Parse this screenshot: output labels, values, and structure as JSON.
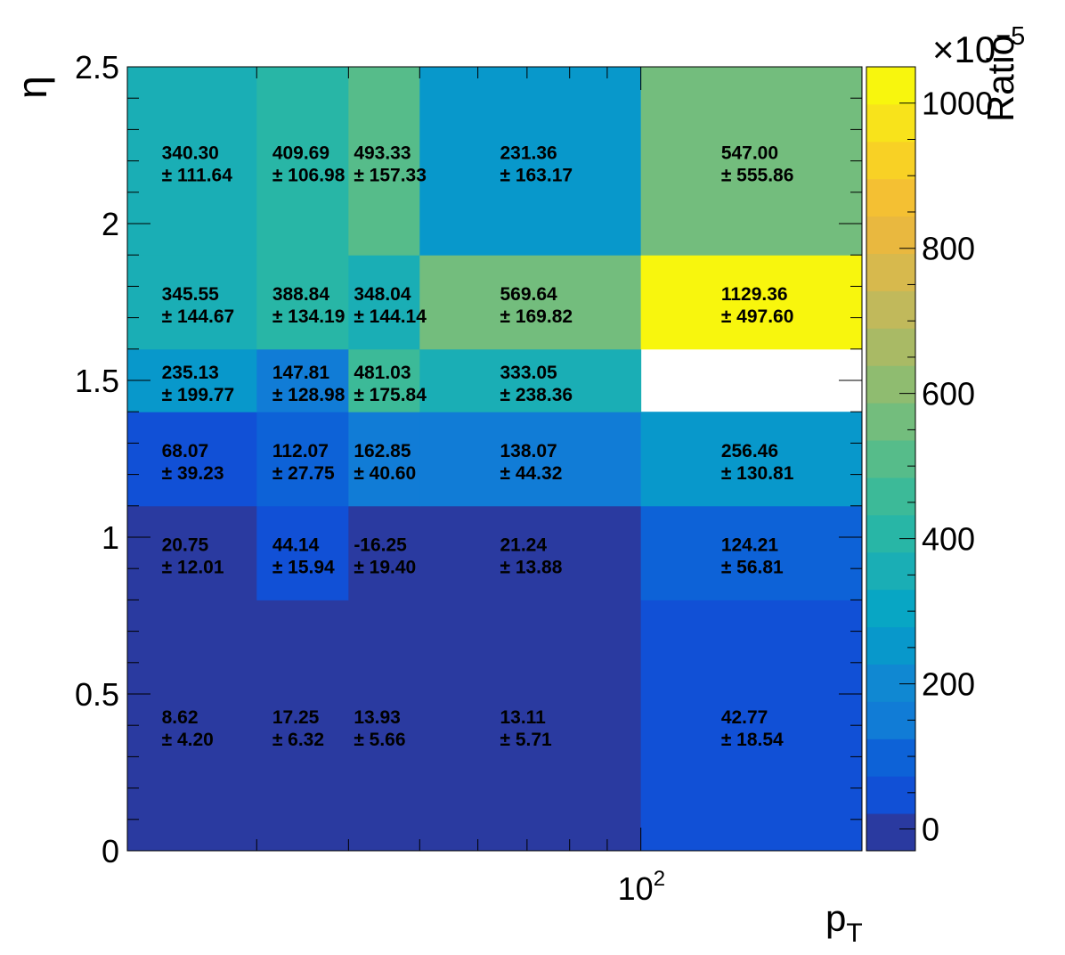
{
  "chart_data": {
    "type": "heatmap",
    "xlabel": "p",
    "xlabel_sub": "T",
    "ylabel": "η",
    "zlabel": "Ratio",
    "z_exponent_label": "×10",
    "z_exponent": "−5",
    "x_scale": "log",
    "x_edges": [
      20,
      30,
      40,
      50,
      100,
      200
    ],
    "x_tick_label_base": "10",
    "x_tick_label_exp": "2",
    "y_edges": [
      0,
      0.8,
      1.1,
      1.4,
      1.6,
      1.9,
      2.5
    ],
    "y_ticks": [
      {
        "value": 0,
        "label": "0"
      },
      {
        "value": 0.5,
        "label": "0.5"
      },
      {
        "value": 1,
        "label": "1"
      },
      {
        "value": 1.5,
        "label": "1.5"
      },
      {
        "value": 2,
        "label": "2"
      },
      {
        "value": 2.5,
        "label": "2.5"
      }
    ],
    "z_range": [
      -30,
      1050
    ],
    "z_ticks": [
      {
        "value": 0,
        "label": "0"
      },
      {
        "value": 200,
        "label": "200"
      },
      {
        "value": 400,
        "label": "400"
      },
      {
        "value": 600,
        "label": "600"
      },
      {
        "value": 800,
        "label": "800"
      },
      {
        "value": 1000,
        "label": "1000"
      }
    ],
    "colors": [
      "#2a3aa0",
      "#1150d6",
      "#0d62d7",
      "#117cd6",
      "#1088d2",
      "#0898cb",
      "#08a6c4",
      "#1aaeb5",
      "#28b6a6",
      "#3cba98",
      "#56bc8a",
      "#73bd7d",
      "#8fbc70",
      "#a9ba65",
      "#c1b95b",
      "#d7b94d",
      "#e9b83f",
      "#f4c033",
      "#f8d125",
      "#f8e31b",
      "#f8f60d"
    ],
    "rows": [
      {
        "cells": [
          {
            "value": "8.62",
            "error": "4.20",
            "z": 8.62
          },
          {
            "value": "17.25",
            "error": "6.32",
            "z": 17.25
          },
          {
            "value": "13.93",
            "error": "5.66",
            "z": 13.93
          },
          {
            "value": "13.11",
            "error": "5.71",
            "z": 13.11
          },
          {
            "value": "42.77",
            "error": "18.54",
            "z": 42.77
          }
        ]
      },
      {
        "cells": [
          {
            "value": "20.75",
            "error": "12.01",
            "z": 20.75
          },
          {
            "value": "44.14",
            "error": "15.94",
            "z": 44.14
          },
          {
            "value": "-16.25",
            "error": "19.40",
            "z": -16.25
          },
          {
            "value": "21.24",
            "error": "13.88",
            "z": 21.24
          },
          {
            "value": "124.21",
            "error": "56.81",
            "z": 124.21
          }
        ]
      },
      {
        "cells": [
          {
            "value": "68.07",
            "error": "39.23",
            "z": 68.07
          },
          {
            "value": "112.07",
            "error": "27.75",
            "z": 112.07
          },
          {
            "value": "162.85",
            "error": "40.60",
            "z": 162.85
          },
          {
            "value": "138.07",
            "error": "44.32",
            "z": 138.07
          },
          {
            "value": "256.46",
            "error": "130.81",
            "z": 256.46
          }
        ]
      },
      {
        "cells": [
          {
            "value": "235.13",
            "error": "199.77",
            "z": 235.13
          },
          {
            "value": "147.81",
            "error": "128.98",
            "z": 147.81
          },
          {
            "value": "481.03",
            "error": "175.84",
            "z": 481.03
          },
          {
            "value": "333.05",
            "error": "238.36",
            "z": 333.05
          },
          null
        ]
      },
      {
        "cells": [
          {
            "value": "345.55",
            "error": "144.67",
            "z": 345.55
          },
          {
            "value": "388.84",
            "error": "134.19",
            "z": 388.84
          },
          {
            "value": "348.04",
            "error": "144.14",
            "z": 348.04
          },
          {
            "value": "569.64",
            "error": "169.82",
            "z": 569.64
          },
          {
            "value": "1129.36",
            "error": "497.60",
            "z": 1129.36
          }
        ]
      },
      {
        "cells": [
          {
            "value": "340.30",
            "error": "111.64",
            "z": 340.3
          },
          {
            "value": "409.69",
            "error": "106.98",
            "z": 409.69
          },
          {
            "value": "493.33",
            "error": "157.33",
            "z": 493.33
          },
          {
            "value": "231.36",
            "error": "163.17",
            "z": 231.36
          },
          {
            "value": "547.00",
            "error": "555.86",
            "z": 547.0
          }
        ]
      }
    ]
  }
}
